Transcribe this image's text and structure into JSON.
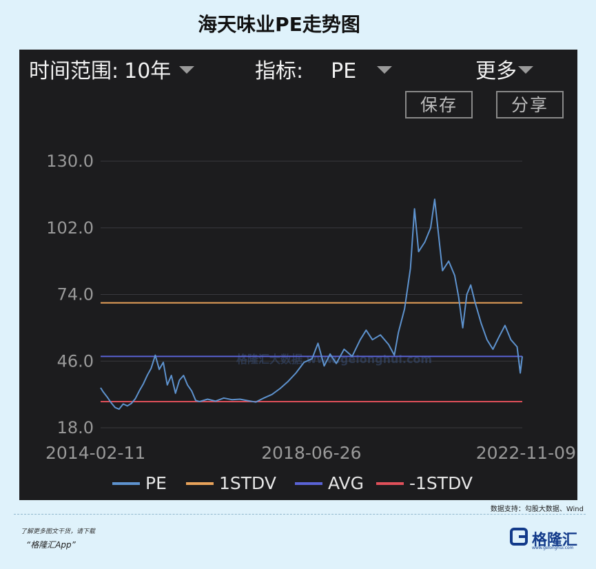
{
  "page": {
    "title": "海天味业PE走势图"
  },
  "controls": {
    "range_label": "时间范围:",
    "range_value": "10年",
    "indicator_label": "指标:",
    "indicator_value": "PE",
    "more_label": "更多",
    "save_label": "保存",
    "share_label": "分享"
  },
  "footer": {
    "source": "数据支持：勾股大数据、Wind",
    "promo_line1": "了解更多图文干货，请下载",
    "promo_line2": "“格隆汇App”",
    "brand_name": "格隆汇",
    "brand_url": "www.gelonghui.com"
  },
  "colors": {
    "pe": "#5e93cf",
    "stdv_plus": "#e8a25a",
    "avg": "#5a63d6",
    "stdv_minus": "#e0505a",
    "panel_bg": "#1c1c1e",
    "grid": "#3a3a3e"
  },
  "chart_data": {
    "type": "line",
    "title": "海天味业PE走势图",
    "x_range": [
      "2014-02-11",
      "2022-11-09"
    ],
    "x_ticks": [
      "2014-02-11",
      "2018-06-26",
      "2022-11-09"
    ],
    "y_ticks": [
      "130.0",
      "102.0",
      "74.0",
      "46.0",
      "18.0"
    ],
    "ylim": [
      18,
      130
    ],
    "grid": true,
    "legend_position": "bottom",
    "reference_lines": [
      {
        "name": "1STDV",
        "value": 70.5
      },
      {
        "name": "AVG",
        "value": 48.0
      },
      {
        "name": "-1STDV",
        "value": 29.0
      }
    ],
    "series": [
      {
        "name": "PE",
        "points": [
          [
            "2014-02-11",
            34.8
          ],
          [
            "2014-03-01",
            33.2
          ],
          [
            "2014-04-01",
            31.0
          ],
          [
            "2014-05-01",
            28.6
          ],
          [
            "2014-06-01",
            26.5
          ],
          [
            "2014-07-01",
            25.8
          ],
          [
            "2014-08-01",
            28.0
          ],
          [
            "2014-09-01",
            27.2
          ],
          [
            "2014-10-01",
            28.2
          ],
          [
            "2014-11-01",
            30.2
          ],
          [
            "2014-12-01",
            33.5
          ],
          [
            "2015-01-01",
            36.5
          ],
          [
            "2015-02-01",
            40.2
          ],
          [
            "2015-03-01",
            43.0
          ],
          [
            "2015-04-01",
            48.5
          ],
          [
            "2015-05-01",
            42.5
          ],
          [
            "2015-06-01",
            45.5
          ],
          [
            "2015-07-01",
            36.0
          ],
          [
            "2015-08-01",
            40.0
          ],
          [
            "2015-09-01",
            32.5
          ],
          [
            "2015-10-01",
            38.0
          ],
          [
            "2015-11-01",
            40.0
          ],
          [
            "2015-12-01",
            36.0
          ],
          [
            "2016-01-01",
            33.5
          ],
          [
            "2016-02-01",
            29.5
          ],
          [
            "2016-03-01",
            29.0
          ],
          [
            "2016-05-01",
            30.0
          ],
          [
            "2016-07-01",
            29.2
          ],
          [
            "2016-09-01",
            30.5
          ],
          [
            "2016-11-01",
            29.8
          ],
          [
            "2017-01-01",
            30.0
          ],
          [
            "2017-03-01",
            29.4
          ],
          [
            "2017-05-01",
            28.8
          ],
          [
            "2017-07-01",
            30.5
          ],
          [
            "2017-09-01",
            32.0
          ],
          [
            "2017-11-01",
            34.5
          ],
          [
            "2018-01-01",
            37.5
          ],
          [
            "2018-03-01",
            41.0
          ],
          [
            "2018-05-01",
            45.5
          ],
          [
            "2018-07-01",
            47.0
          ],
          [
            "2018-08-15",
            53.5
          ],
          [
            "2018-10-01",
            44.0
          ],
          [
            "2018-11-15",
            49.0
          ],
          [
            "2019-01-01",
            45.0
          ],
          [
            "2019-03-01",
            51.0
          ],
          [
            "2019-05-01",
            48.0
          ],
          [
            "2019-07-01",
            55.0
          ],
          [
            "2019-08-15",
            59.0
          ],
          [
            "2019-10-01",
            55.0
          ],
          [
            "2019-12-01",
            57.0
          ],
          [
            "2020-02-01",
            53.0
          ],
          [
            "2020-03-15",
            48.5
          ],
          [
            "2020-04-15",
            58.0
          ],
          [
            "2020-06-01",
            68.0
          ],
          [
            "2020-07-15",
            85.0
          ],
          [
            "2020-08-15",
            110.0
          ],
          [
            "2020-09-15",
            92.0
          ],
          [
            "2020-11-01",
            96.0
          ],
          [
            "2020-12-15",
            102.0
          ],
          [
            "2021-01-15",
            114.0
          ],
          [
            "2021-02-15",
            98.0
          ],
          [
            "2021-03-15",
            84.0
          ],
          [
            "2021-05-01",
            88.0
          ],
          [
            "2021-06-15",
            82.0
          ],
          [
            "2021-07-15",
            73.0
          ],
          [
            "2021-08-15",
            60.0
          ],
          [
            "2021-09-15",
            74.0
          ],
          [
            "2021-10-15",
            78.0
          ],
          [
            "2021-11-15",
            71.0
          ],
          [
            "2022-01-01",
            62.0
          ],
          [
            "2022-02-15",
            55.0
          ],
          [
            "2022-04-01",
            51.0
          ],
          [
            "2022-05-15",
            56.0
          ],
          [
            "2022-07-01",
            61.0
          ],
          [
            "2022-08-15",
            55.0
          ],
          [
            "2022-10-01",
            52.0
          ],
          [
            "2022-10-25",
            41.0
          ],
          [
            "2022-11-09",
            48.0
          ]
        ]
      }
    ],
    "watermark": "格隆汇大数据 www.gelonghui.com"
  }
}
